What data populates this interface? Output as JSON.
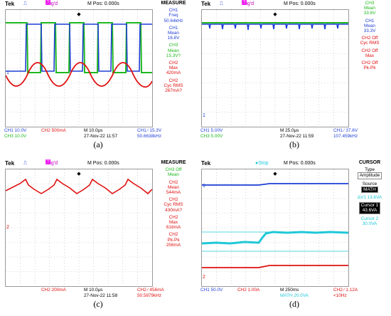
{
  "colors": {
    "ch1": "#1f3fd6",
    "ch2": "#e01010",
    "ch3": "#1fb81f",
    "math": "#20c8d8"
  },
  "panels": [
    {
      "caption": "(a)",
      "tek": "Tek",
      "trig": "Trig'd",
      "mpos": "M Pos: 0.000s",
      "side_title": "MEASURE",
      "side": [
        {
          "a": "CH1",
          "b": "Freq",
          "c": "50.64kHz",
          "color": "blue"
        },
        {
          "a": "CH1",
          "b": "Mean",
          "c": "16.8V",
          "color": "blue"
        },
        {
          "a": "CH3",
          "b": "Mean",
          "c": "15.3V?",
          "color": "green"
        },
        {
          "a": "CH2",
          "b": "Max",
          "c": "420mA",
          "color": "red"
        },
        {
          "a": "CH2",
          "b": "Cyc RMS",
          "c": "267mA?",
          "color": "red"
        }
      ],
      "footer": {
        "l1a": "CH1  10.0V",
        "l1b": "CH2  500mA",
        "l1c": "M 10.0µs",
        "l1d": "CH1 ∕ 15.3V",
        "l2a": "CH3  10.0V",
        "l2c": "27-Nov-22 11:57",
        "l2d": "50.6638kHz"
      }
    },
    {
      "caption": "(b)",
      "tek": "Tek",
      "trig": "Trig'd",
      "mpos": "M Pos: 0.000s",
      "side_title": "",
      "side": [
        {
          "a": "CH3",
          "b": "Mean",
          "c": "33.6V",
          "color": "green"
        },
        {
          "a": "CH1",
          "b": "Mean",
          "c": "33.3V",
          "color": "blue"
        },
        {
          "a": "CH2 Off",
          "b": "Cyc RMS",
          "c": "",
          "color": "red"
        },
        {
          "a": "CH2 Off",
          "b": "Max",
          "c": "",
          "color": "red"
        },
        {
          "a": "CH2 Off",
          "b": "Pk-Pk",
          "c": "",
          "color": "red"
        }
      ],
      "footer": {
        "l1a": "CH1  5.00V",
        "l1b": "",
        "l1c": "M 25.0µs",
        "l1d": "CH1 ∕ 37.6V",
        "l2a": "CH3  5.00V",
        "l2c": "27-Nov-22 11:59",
        "l2d": "107.459kHz"
      }
    },
    {
      "caption": "(c)",
      "tek": "Tek",
      "trig": "Trig'd",
      "mpos": "M Pos: 0.000s",
      "side_title": "MEASURE",
      "side": [
        {
          "a": "CH3 Off",
          "b": "Mean",
          "c": "",
          "color": "green"
        },
        {
          "a": "CH2",
          "b": "Mean",
          "c": "544mA",
          "color": "red"
        },
        {
          "a": "CH2",
          "b": "Cyc RMS",
          "c": "430mA?",
          "color": "red"
        },
        {
          "a": "CH2",
          "b": "Max",
          "c": "616mA",
          "color": "red"
        },
        {
          "a": "CH2",
          "b": "Pk-Pk",
          "c": "256mA",
          "color": "red"
        }
      ],
      "footer": {
        "l1a": "",
        "l1b": "CH2  200mA",
        "l1c": "M 10.0µs",
        "l1d": "CH2 ∕ 456mA",
        "l2a": "",
        "l2c": "27-Nov-22 11:58",
        "l2d": "50.5879kHz"
      }
    },
    {
      "caption": "(d)",
      "tek": "Tek",
      "trig": "Stop",
      "mpos": "M Pos: 0.000s",
      "side_title": "CURSOR",
      "cursor": {
        "type_label": "Type",
        "type_value": "Amplitude",
        "source_label": "Source",
        "source_value": "MATH",
        "delta": "ΔV1 13.6VA",
        "c1_label": "Cursor 1",
        "c1_value": "43.6VA",
        "c2_label": "Cursor 2",
        "c2_value": "30.0VA"
      },
      "footer": {
        "l1a": "CH1  50.0V",
        "l1b": "CH2  1.00A",
        "l1c": "M 250ms",
        "l1d": "CH2 ∕ 1.12A",
        "l2a": "",
        "l2c": "MATH 20.0VA",
        "l2d": "<10Hz"
      }
    }
  ]
}
